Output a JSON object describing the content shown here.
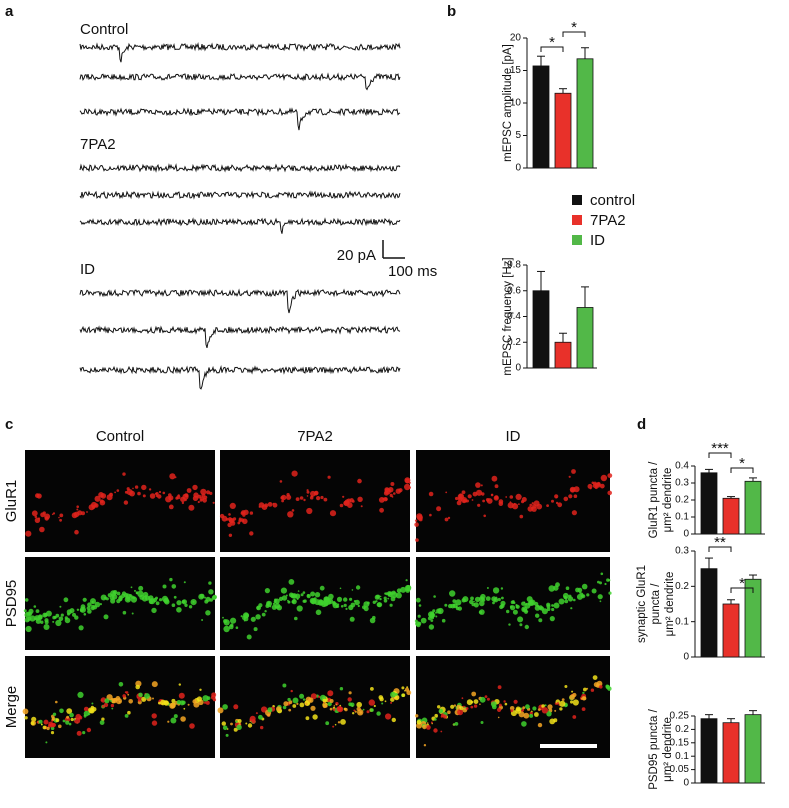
{
  "panel_labels": [
    "a",
    "b",
    "c",
    "d"
  ],
  "traces": {
    "groups": [
      "Control",
      "7PA2",
      "ID"
    ],
    "scale_bar": {
      "y_label": "20 pA",
      "x_label": "100 ms"
    }
  },
  "legend": [
    {
      "name": "control",
      "color": "#111111"
    },
    {
      "name": "7PA2",
      "color": "#e8312a"
    },
    {
      "name": "ID",
      "color": "#52b848"
    }
  ],
  "chart_data": [
    {
      "type": "bar",
      "ylabel": [
        "mEPSC amplitude [pA]"
      ],
      "values": [
        15.7,
        11.5,
        16.8
      ],
      "errors": [
        1.5,
        0.7,
        1.7
      ],
      "ylim": [
        0,
        20
      ],
      "yticks": [
        0,
        5,
        10,
        15,
        20
      ],
      "annotations": [
        "*",
        "*"
      ]
    },
    {
      "type": "bar",
      "ylabel": [
        "mEPSC frequency [Hz]"
      ],
      "values": [
        0.6,
        0.2,
        0.47
      ],
      "errors": [
        0.15,
        0.07,
        0.16
      ],
      "ylim": [
        0,
        0.8
      ],
      "yticks": [
        0,
        0.2,
        0.4,
        0.6,
        0.8
      ],
      "annotations": []
    },
    {
      "type": "bar",
      "ylabel": [
        "GluR1 puncta /",
        "μm² dendrite"
      ],
      "values": [
        0.36,
        0.21,
        0.31
      ],
      "errors": [
        0.02,
        0.01,
        0.02
      ],
      "ylim": [
        0,
        0.4
      ],
      "yticks": [
        0,
        0.1,
        0.2,
        0.3,
        0.4
      ],
      "annotations": [
        "***",
        "*"
      ]
    },
    {
      "type": "bar",
      "ylabel": [
        "synaptic GluR1",
        "puncta /",
        "μm² dendrite"
      ],
      "values": [
        0.25,
        0.15,
        0.22
      ],
      "errors": [
        0.03,
        0.012,
        0.012
      ],
      "ylim": [
        0,
        0.3
      ],
      "yticks": [
        0,
        0.1,
        0.2,
        0.3
      ],
      "annotations": [
        "**",
        "*"
      ]
    },
    {
      "type": "bar",
      "ylabel": [
        "PSD95 puncta /",
        "μm² dendrite"
      ],
      "values": [
        0.24,
        0.225,
        0.255
      ],
      "errors": [
        0.015,
        0.015,
        0.015
      ],
      "ylim": [
        0,
        0.25
      ],
      "yticks": [
        0,
        0.05,
        0.1,
        0.15,
        0.2,
        0.25
      ],
      "annotations": []
    }
  ],
  "images": {
    "columns": [
      "Control",
      "7PA2",
      "ID"
    ],
    "rows": [
      "GluR1",
      "PSD95",
      "Merge"
    ]
  }
}
